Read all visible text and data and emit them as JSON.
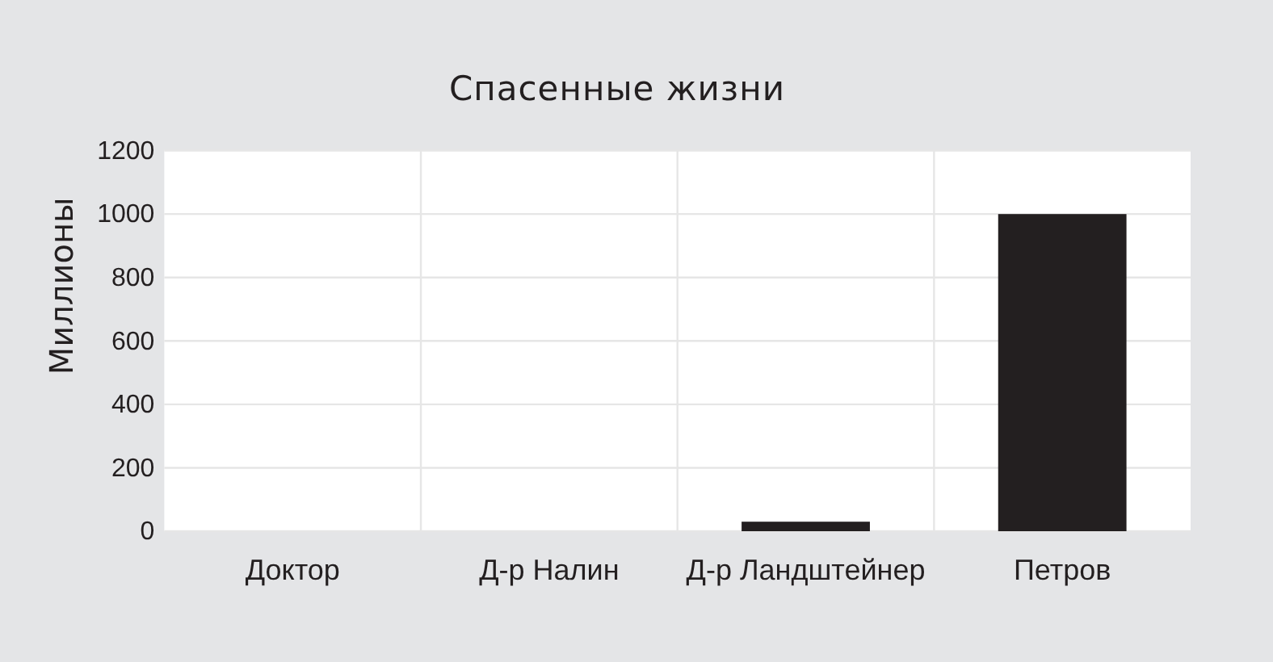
{
  "chart_data": {
    "type": "bar",
    "title": "Спасенные жизни",
    "ylabel": "Миллионы",
    "categories": [
      "Доктор",
      "Д-р Налин",
      "Д-р Ландштейнер",
      "Петров"
    ],
    "values": [
      0,
      0,
      30,
      1000
    ],
    "color": "#231f20",
    "ylim": [
      0,
      1200
    ],
    "yticks": [
      0,
      200,
      400,
      600,
      800,
      1000,
      1200
    ],
    "grid": true
  }
}
